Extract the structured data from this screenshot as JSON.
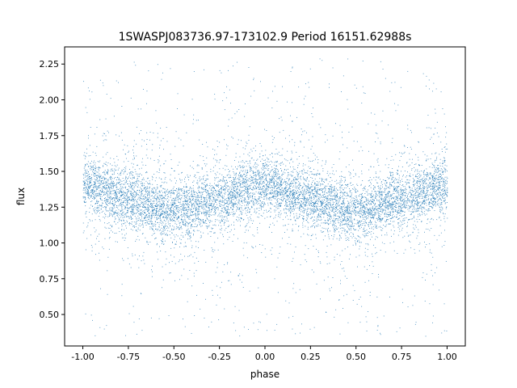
{
  "chart_data": {
    "type": "scatter",
    "title": "1SWASPJ083736.97-173102.9 Period 16151.62988s",
    "xlabel": "phase",
    "ylabel": "flux",
    "xlim": [
      -1.1,
      1.1
    ],
    "ylim": [
      0.28,
      2.37
    ],
    "x_ticks": [
      "-1.00",
      "-0.75",
      "-0.50",
      "-0.25",
      "0.00",
      "0.25",
      "0.50",
      "0.75",
      "1.00"
    ],
    "y_ticks": [
      "0.50",
      "0.75",
      "1.00",
      "1.25",
      "1.50",
      "1.75",
      "2.00",
      "2.25"
    ],
    "grid": false,
    "point_color": "#1f77b4",
    "series": [
      {
        "phase_range": [
          -1.0,
          1.0
        ],
        "folded_period_cycles": 1,
        "trend": {
          "x": [
            -1.0,
            -0.75,
            -0.5,
            -0.25,
            0.0,
            0.25,
            0.5,
            0.75,
            1.0
          ],
          "y": [
            1.41,
            1.31,
            1.22,
            1.31,
            1.41,
            1.31,
            1.22,
            1.31,
            1.41
          ]
        },
        "scatter_sigma": 0.12,
        "outlier_range": [
          0.35,
          2.3
        ]
      }
    ]
  }
}
